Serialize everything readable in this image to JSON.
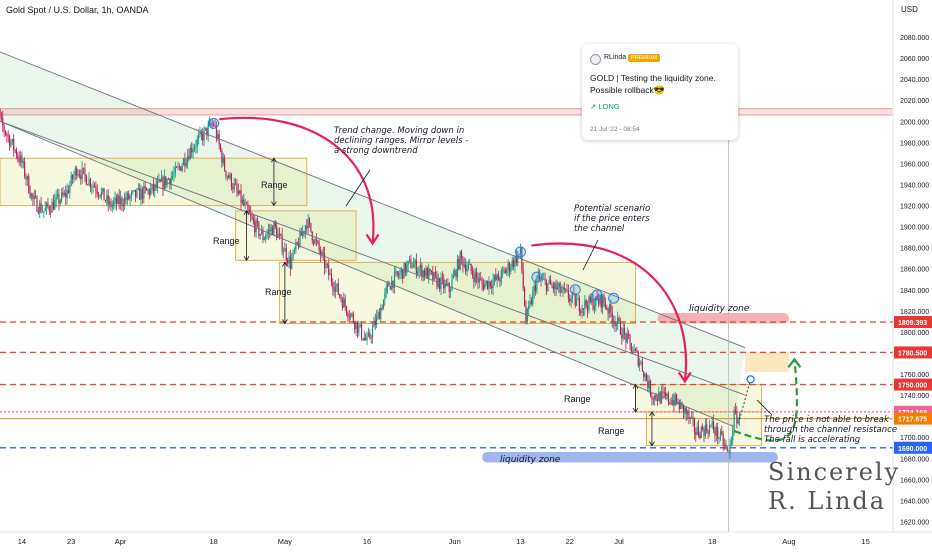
{
  "chart_data": {
    "type": "candlestick",
    "title": "Gold Spot / U.S. Dollar, 1h, OANDA",
    "y_unit": "USD",
    "ylim": [
      1610,
      2100
    ],
    "xlim": [
      "2022-03-10",
      "2022-08-20"
    ],
    "y_ticks": [
      2080,
      2060,
      2040,
      2020,
      2000,
      1980,
      1960,
      1940,
      1920,
      1900,
      1880,
      1860,
      1840,
      1820,
      1800,
      1780,
      1760,
      1740,
      1720,
      1700,
      1680,
      1660,
      1640,
      1620
    ],
    "x_ticks": [
      {
        "label": "14",
        "date": "2022-03-14"
      },
      {
        "label": "23",
        "date": "2022-03-23"
      },
      {
        "label": "Apr",
        "date": "2022-04-01"
      },
      {
        "label": "18",
        "date": "2022-04-18"
      },
      {
        "label": "May",
        "date": "2022-05-01"
      },
      {
        "label": "16",
        "date": "2022-05-16"
      },
      {
        "label": "Jun",
        "date": "2022-06-01"
      },
      {
        "label": "13",
        "date": "2022-06-13"
      },
      {
        "label": "22",
        "date": "2022-06-22"
      },
      {
        "label": "Jul",
        "date": "2022-07-01"
      },
      {
        "label": "18",
        "date": "2022-07-18"
      },
      {
        "label": "Aug",
        "date": "2022-08-01"
      },
      {
        "label": "15",
        "date": "2022-08-15"
      }
    ],
    "price_path": [
      {
        "date": "2022-03-08",
        "price": 2070
      },
      {
        "date": "2022-03-10",
        "price": 2000
      },
      {
        "date": "2022-03-14",
        "price": 1960
      },
      {
        "date": "2022-03-16",
        "price": 1925
      },
      {
        "date": "2022-03-18",
        "price": 1915
      },
      {
        "date": "2022-03-22",
        "price": 1930
      },
      {
        "date": "2022-03-24",
        "price": 1955
      },
      {
        "date": "2022-03-28",
        "price": 1935
      },
      {
        "date": "2022-03-30",
        "price": 1920
      },
      {
        "date": "2022-04-04",
        "price": 1930
      },
      {
        "date": "2022-04-07",
        "price": 1935
      },
      {
        "date": "2022-04-11",
        "price": 1950
      },
      {
        "date": "2022-04-14",
        "price": 1975
      },
      {
        "date": "2022-04-18",
        "price": 1998
      },
      {
        "date": "2022-04-20",
        "price": 1955
      },
      {
        "date": "2022-04-22",
        "price": 1935
      },
      {
        "date": "2022-04-25",
        "price": 1905
      },
      {
        "date": "2022-04-27",
        "price": 1890
      },
      {
        "date": "2022-04-29",
        "price": 1900
      },
      {
        "date": "2022-05-02",
        "price": 1865
      },
      {
        "date": "2022-05-05",
        "price": 1905
      },
      {
        "date": "2022-05-09",
        "price": 1855
      },
      {
        "date": "2022-05-12",
        "price": 1825
      },
      {
        "date": "2022-05-16",
        "price": 1790
      },
      {
        "date": "2022-05-18",
        "price": 1815
      },
      {
        "date": "2022-05-20",
        "price": 1845
      },
      {
        "date": "2022-05-24",
        "price": 1865
      },
      {
        "date": "2022-05-27",
        "price": 1855
      },
      {
        "date": "2022-05-31",
        "price": 1840
      },
      {
        "date": "2022-06-02",
        "price": 1870
      },
      {
        "date": "2022-06-06",
        "price": 1845
      },
      {
        "date": "2022-06-09",
        "price": 1850
      },
      {
        "date": "2022-06-13",
        "price": 1875
      },
      {
        "date": "2022-06-14",
        "price": 1810
      },
      {
        "date": "2022-06-16",
        "price": 1850
      },
      {
        "date": "2022-06-20",
        "price": 1840
      },
      {
        "date": "2022-06-24",
        "price": 1825
      },
      {
        "date": "2022-06-28",
        "price": 1830
      },
      {
        "date": "2022-07-01",
        "price": 1805
      },
      {
        "date": "2022-07-05",
        "price": 1770
      },
      {
        "date": "2022-07-07",
        "price": 1740
      },
      {
        "date": "2022-07-11",
        "price": 1735
      },
      {
        "date": "2022-07-13",
        "price": 1725
      },
      {
        "date": "2022-07-15",
        "price": 1705
      },
      {
        "date": "2022-07-18",
        "price": 1710
      },
      {
        "date": "2022-07-20",
        "price": 1695
      },
      {
        "date": "2022-07-21",
        "price": 1682
      },
      {
        "date": "2022-07-22",
        "price": 1720
      },
      {
        "date": "2022-07-23",
        "price": 1717
      }
    ],
    "circled_points": [
      {
        "date": "2022-03-08",
        "price": 2070
      },
      {
        "date": "2022-04-18",
        "price": 1998
      },
      {
        "date": "2022-06-13",
        "price": 1876
      },
      {
        "date": "2022-06-16",
        "price": 1852
      },
      {
        "date": "2022-06-23",
        "price": 1840
      },
      {
        "date": "2022-06-27",
        "price": 1835
      },
      {
        "date": "2022-06-30",
        "price": 1832
      }
    ],
    "target_marker": {
      "date": "2022-07-25",
      "price": 1755
    },
    "channel": {
      "upper": {
        "from": {
          "date": "2022-03-08",
          "price": 2070
        },
        "to": {
          "date": "2022-07-24",
          "price": 1785
        }
      },
      "lower": {
        "from": {
          "date": "2022-03-10",
          "price": 2000
        },
        "to": {
          "date": "2022-07-22",
          "price": 1710
        }
      },
      "mid": {
        "from": {
          "date": "2022-03-10",
          "price": 2000
        },
        "to": {
          "date": "2022-07-24",
          "price": 1740
        }
      }
    },
    "range_boxes": [
      {
        "label": "Range",
        "x0": "2022-03-10",
        "x1": "2022-05-05",
        "y0": 1920,
        "y1": 1965
      },
      {
        "label": "Range",
        "x0": "2022-04-22",
        "x1": "2022-05-14",
        "y0": 1868,
        "y1": 1915
      },
      {
        "label": "Range",
        "x0": "2022-04-30",
        "x1": "2022-07-04",
        "y0": 1808,
        "y1": 1866
      },
      {
        "label": "Range",
        "x0": "2022-07-04",
        "x1": "2022-07-27",
        "y0": 1724,
        "y1": 1750
      },
      {
        "label": "Range",
        "x0": "2022-07-06",
        "x1": "2022-07-27",
        "y0": 1692,
        "y1": 1724
      }
    ],
    "resistance_zone": {
      "x0": "2022-07-24",
      "x1": "2022-08-01",
      "y0": 1762,
      "y1": 1781
    },
    "horizontal_levels": [
      {
        "price": 1809.393,
        "label": "1809.393",
        "color": "#e53935",
        "style": "dashed"
      },
      {
        "price": 1780.5,
        "label": "1780.500",
        "color": "#e53935",
        "style": "dashed"
      },
      {
        "price": 1750.0,
        "label": "1750.000",
        "color": "#e53935",
        "style": "dashed"
      },
      {
        "price": 1724.168,
        "label": "1724.168",
        "color": "#f06292",
        "style": "dotted"
      },
      {
        "price": 1717.675,
        "label": "1717.675",
        "color": "#f57c00",
        "style": "solid"
      },
      {
        "price": 1690.0,
        "label": "1690.000",
        "color": "#2962ff",
        "style": "dashed"
      }
    ],
    "liquidity_zones": [
      {
        "label": "liquidity zone",
        "x0": "2022-07-08",
        "x1": "2022-08-01",
        "y0": 1808,
        "y1": 1818,
        "color": "#f4a3a8"
      },
      {
        "label": "liquidity zone",
        "x0": "2022-06-06",
        "x1": "2022-07-30",
        "y0": 1676,
        "y1": 1686,
        "color": "#90a9ea"
      }
    ],
    "upper_band": {
      "x0": "2022-03-10",
      "x1": "2022-08-20",
      "y0": 2006,
      "y1": 2012,
      "color": "#f4a3a8"
    },
    "annotations": [
      {
        "text": "Trend change. Moving down in\ndeclining ranges. Mirror levels -\na strong downtrend"
      },
      {
        "text": "Potential scenario\nif the price enters\nthe channel"
      },
      {
        "text": "The price is not able to break\nthrough the channel resistance\nThe fall is accelerating"
      }
    ],
    "signature": [
      "Sincerely",
      "R. Linda"
    ],
    "grid": false,
    "colors": {
      "up": "#089981",
      "down": "#c2185b",
      "arrow_down": "#e91e63",
      "arrow_up": "#2e9c3a"
    }
  },
  "idea_card": {
    "author": "RLinda",
    "badge": "PREMIUM",
    "headline": "GOLD | Testing the liquidity zone. Possible rollback",
    "headline_emoji": "😎",
    "direction": "↗ LONG",
    "date": "21 Jul '22 - 08:54"
  }
}
